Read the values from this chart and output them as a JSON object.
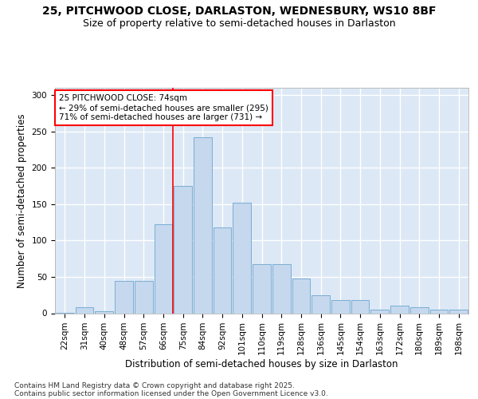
{
  "title_line1": "25, PITCHWOOD CLOSE, DARLASTON, WEDNESBURY, WS10 8BF",
  "title_line2": "Size of property relative to semi-detached houses in Darlaston",
  "xlabel": "Distribution of semi-detached houses by size in Darlaston",
  "ylabel": "Number of semi-detached properties",
  "categories": [
    "22sqm",
    "31sqm",
    "40sqm",
    "48sqm",
    "57sqm",
    "66sqm",
    "75sqm",
    "84sqm",
    "92sqm",
    "101sqm",
    "110sqm",
    "119sqm",
    "128sqm",
    "136sqm",
    "145sqm",
    "154sqm",
    "163sqm",
    "172sqm",
    "180sqm",
    "189sqm",
    "198sqm"
  ],
  "values": [
    1,
    8,
    3,
    44,
    44,
    122,
    175,
    242,
    118,
    152,
    68,
    68,
    48,
    25,
    18,
    18,
    5,
    10,
    8,
    5,
    5
  ],
  "bar_color": "#c5d8ee",
  "bar_edge_color": "#7aadd4",
  "annotation_text": "25 PITCHWOOD CLOSE: 74sqm\n← 29% of semi-detached houses are smaller (295)\n71% of semi-detached houses are larger (731) →",
  "annotation_box_color": "white",
  "annotation_box_edge_color": "red",
  "vline_color": "red",
  "background_color": "#dce8f5",
  "ylim": [
    0,
    310
  ],
  "yticks": [
    0,
    50,
    100,
    150,
    200,
    250,
    300
  ],
  "footer_line1": "Contains HM Land Registry data © Crown copyright and database right 2025.",
  "footer_line2": "Contains public sector information licensed under the Open Government Licence v3.0.",
  "title_fontsize": 10,
  "subtitle_fontsize": 9,
  "label_fontsize": 8.5,
  "tick_fontsize": 7.5,
  "annotation_fontsize": 7.5,
  "footer_fontsize": 6.5
}
